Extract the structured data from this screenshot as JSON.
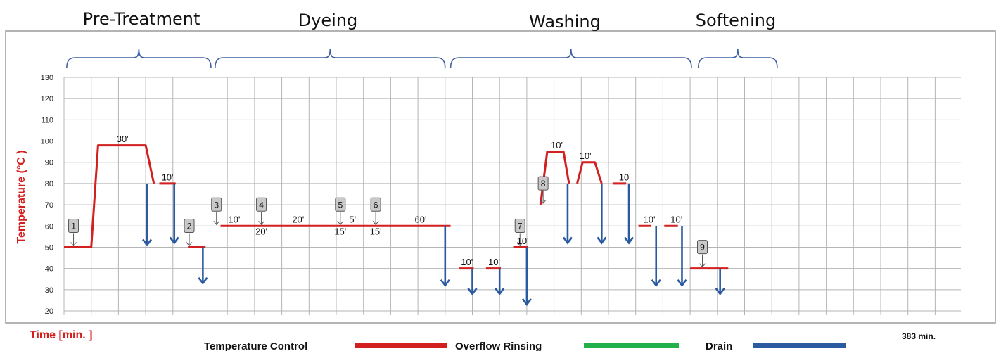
{
  "chart_data": {
    "type": "line",
    "ylabel": "Temperature (°C )",
    "xlabel": "Time [min. ]",
    "total_time": "383 min.",
    "ylim": [
      20,
      130
    ],
    "yticks": [
      "20",
      "30",
      "40",
      "50",
      "60",
      "70",
      "80",
      "90",
      "100",
      "110",
      "120",
      "130"
    ],
    "grid": true,
    "phases": [
      "Pre-Treatment",
      "Dyeing",
      "Washing",
      "Softening"
    ],
    "legend": [
      {
        "label": "Temperature Control",
        "color": "#d21f1f"
      },
      {
        "label": "Overflow Rinsing",
        "color": "#22b04b"
      },
      {
        "label": "Drain",
        "color": "#2c5aa0"
      }
    ],
    "temperature_profile": [
      [
        [
          0,
          50
        ],
        [
          1,
          50
        ],
        [
          1.25,
          98
        ],
        [
          3,
          98
        ],
        [
          3.3,
          80
        ]
      ],
      [
        [
          3.5,
          80
        ],
        [
          4.1,
          80
        ]
      ],
      [
        [
          4.55,
          50
        ],
        [
          5.2,
          50
        ]
      ],
      [
        [
          5.75,
          60
        ],
        [
          14.2,
          60
        ]
      ],
      [
        [
          14.5,
          40
        ],
        [
          15.05,
          40
        ]
      ],
      [
        [
          15.5,
          40
        ],
        [
          16.05,
          40
        ]
      ],
      [
        [
          16.5,
          50
        ],
        [
          17.05,
          50
        ]
      ],
      [
        [
          17.5,
          70
        ],
        [
          17.75,
          95
        ],
        [
          18.35,
          95
        ],
        [
          18.55,
          80
        ]
      ],
      [
        [
          18.85,
          80
        ],
        [
          19.05,
          90
        ],
        [
          19.5,
          90
        ],
        [
          19.75,
          80
        ]
      ],
      [
        [
          20.15,
          80
        ],
        [
          20.65,
          80
        ]
      ],
      [
        [
          21.1,
          60
        ],
        [
          21.55,
          60
        ]
      ],
      [
        [
          22.05,
          60
        ],
        [
          22.55,
          60
        ]
      ],
      [
        [
          23.0,
          40
        ],
        [
          24.4,
          40
        ]
      ]
    ],
    "drains": [
      {
        "x": 3.05,
        "from": 80,
        "to": 51
      },
      {
        "x": 4.05,
        "from": 80,
        "to": 52
      },
      {
        "x": 5.1,
        "from": 50,
        "to": 33
      },
      {
        "x": 14.0,
        "from": 60,
        "to": 32
      },
      {
        "x": 15.0,
        "from": 40,
        "to": 28
      },
      {
        "x": 16.0,
        "from": 40,
        "to": 28
      },
      {
        "x": 17.0,
        "from": 50,
        "to": 23
      },
      {
        "x": 18.5,
        "from": 80,
        "to": 52
      },
      {
        "x": 19.75,
        "from": 80,
        "to": 52
      },
      {
        "x": 20.75,
        "from": 80,
        "to": 52
      },
      {
        "x": 21.75,
        "from": 60,
        "to": 32
      },
      {
        "x": 22.7,
        "from": 60,
        "to": 32
      },
      {
        "x": 24.1,
        "from": 40,
        "to": 28
      }
    ],
    "dosing_points": [
      {
        "n": "1",
        "x": 0.35,
        "y": 50
      },
      {
        "n": "2",
        "x": 4.6,
        "y": 50
      },
      {
        "n": "3",
        "x": 5.6,
        "y": 60
      },
      {
        "n": "4",
        "x": 7.25,
        "y": 60
      },
      {
        "n": "5",
        "x": 10.15,
        "y": 60
      },
      {
        "n": "6",
        "x": 11.45,
        "y": 60
      },
      {
        "n": "7",
        "x": 16.75,
        "y": 50
      },
      {
        "n": "8",
        "x": 17.6,
        "y": 70
      },
      {
        "n": "9",
        "x": 23.45,
        "y": 40
      }
    ],
    "annotations": [
      {
        "text": "30'",
        "x": 2.15,
        "y": 99.5
      },
      {
        "text": "10'",
        "x": 3.8,
        "y": 81.5
      },
      {
        "text": "10'",
        "x": 6.25,
        "y": 61.5
      },
      {
        "text": "20'",
        "x": 7.25,
        "y": 56
      },
      {
        "text": "20'",
        "x": 8.6,
        "y": 61.5
      },
      {
        "text": "5'",
        "x": 10.6,
        "y": 61.5
      },
      {
        "text": "15'",
        "x": 10.15,
        "y": 56
      },
      {
        "text": "15'",
        "x": 11.45,
        "y": 56
      },
      {
        "text": "60'",
        "x": 13.1,
        "y": 61.5
      },
      {
        "text": "10'",
        "x": 14.8,
        "y": 41.5
      },
      {
        "text": "10'",
        "x": 15.8,
        "y": 41.5
      },
      {
        "text": "10'",
        "x": 16.85,
        "y": 51.5
      },
      {
        "text": "10'",
        "x": 18.1,
        "y": 96.5
      },
      {
        "text": "10'",
        "x": 19.15,
        "y": 91.5
      },
      {
        "text": "10'",
        "x": 20.6,
        "y": 81.5
      },
      {
        "text": "10'",
        "x": 21.5,
        "y": 61.5
      },
      {
        "text": "10'",
        "x": 22.5,
        "y": 61.5
      }
    ]
  }
}
